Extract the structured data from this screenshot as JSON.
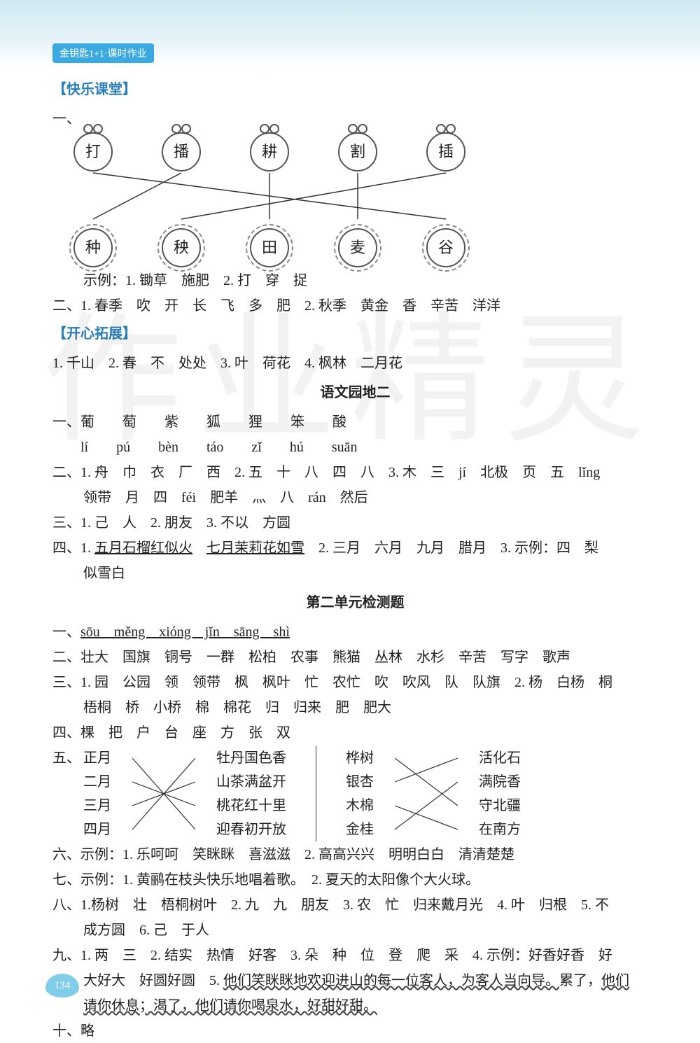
{
  "tab": "金钥匙1+1·课时作业",
  "section1": "【快乐课堂】",
  "bees": [
    "打",
    "播",
    "耕",
    "割",
    "插"
  ],
  "flowers": [
    "种",
    "秧",
    "田",
    "麦",
    "谷"
  ],
  "diagram_edges": [
    [
      0,
      4
    ],
    [
      1,
      0
    ],
    [
      2,
      2
    ],
    [
      3,
      3
    ],
    [
      4,
      1
    ]
  ],
  "s1_ex": "示例：1. 锄草　施肥　2. 打　穿　捉",
  "s1_q2": "二、1. 春季　吹　开　长　飞　多　肥　2. 秋季　黄金　香　辛苦　洋洋",
  "section2": "【开心拓展】",
  "s2_1": "1. 千山　2. 春　不　处处　3. 叶　荷花　4. 枫林　二月花",
  "h1": "语文园地二",
  "yw_1": "一、葡　　萄　　紫　　狐　　狸　　笨　　酸",
  "yw_py": "　　lí　　pú　　bèn　　táo　　zǐ　　hú　　suān",
  "yw_2": "二、1. 舟　巾　衣　厂　西　2. 五　十　八　四　八　3. 木　三　jí　北极　页　五　lǐng",
  "yw_2b": "领带　月　四　féi　肥羊　灬　八　rán　然后",
  "yw_3": "三、1. 己　人　2. 朋友　3. 不以　方圆",
  "yw_4a": "四、1. ",
  "yw_4u1": "五月石榴红似火",
  "yw_4u2": "七月茉莉花如雪",
  "yw_4b": "　2. 三月　六月　九月　腊月　3. 示例：四　梨",
  "yw_4c": "似雪白",
  "h2": "第二单元检测题",
  "u2_1p": "一、",
  "u2_1": "sōu　měng　xióng　jǐn　sāng　shì",
  "u2_2": "二、壮大　国旗　铜号　一群　松柏　农事　熊猫　丛林　水杉　辛苦　写字　歌声",
  "u2_3": "三、1. 园　公园　领　领带　枫　枫叶　忙　农忙　吹　吹风　队　队旗　2. 杨　白杨　桐",
  "u2_3b": "梧桐　桥　小桥　棉　棉花　归　归来　肥　肥大",
  "u2_4": "四、棵　把　户　台　座　方　张　双",
  "u2_5": "五、",
  "m_left_a": [
    "正月",
    "二月",
    "三月",
    "四月"
  ],
  "m_left_b": [
    "牡丹国色香",
    "山茶满盆开",
    "桃花红十里",
    "迎春初开放"
  ],
  "m_left_edges": [
    [
      0,
      3
    ],
    [
      1,
      2
    ],
    [
      2,
      1
    ],
    [
      3,
      0
    ]
  ],
  "m_right_a": [
    "桦树",
    "银杏",
    "木棉",
    "金桂"
  ],
  "m_right_b": [
    "活化石",
    "满院香",
    "守北疆",
    "在南方"
  ],
  "m_right_edges": [
    [
      0,
      2
    ],
    [
      1,
      0
    ],
    [
      2,
      3
    ],
    [
      3,
      1
    ]
  ],
  "u2_6": "六、示例：1. 乐呵呵　笑眯眯　喜滋滋　2. 高高兴兴　明明白白　清清楚楚",
  "u2_7": "七、示例：1. 黄鹂在枝头快乐地唱着歌。　2. 夏天的太阳像个大火球。",
  "u2_8": "八、1.杨树　壮　梧桐树叶　2. 九　九　朋友　3. 农　忙　归来戴月光　4. 叶　归根　5. 不",
  "u2_8b": "成方圆　6. 己　于人",
  "u2_9a": "九、1. 两　三　2. 结实　热情　好客　3. 朵　种　位　登　爬　采　4. 示例：好香好香　好",
  "u2_9b1": "大好大　好圆好圆　5. ",
  "u2_9w1": "他们笑眯眯地欢迎进山的每一位客人，为客人当向导。",
  "u2_9b2": "累了，",
  "u2_9w2": "他们",
  "u2_9w3": "请你休息；渴了，他们请你喝泉水，好甜好甜。",
  "u2_10": "十、略",
  "page_num": "134",
  "colors": {
    "primary": "#2b7fb8",
    "banner_bg": "#cfe9f2"
  }
}
